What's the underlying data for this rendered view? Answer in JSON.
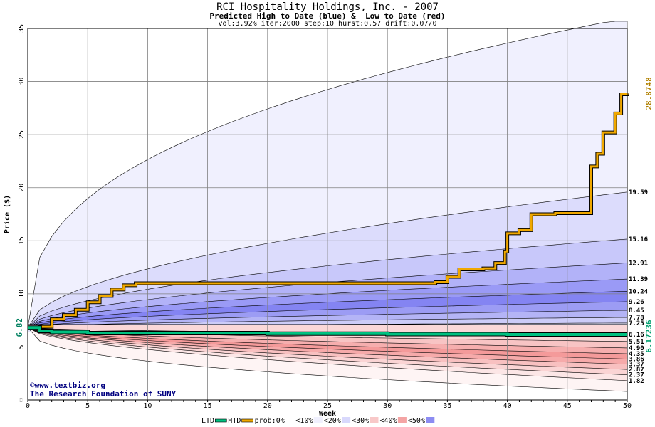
{
  "header": {
    "title": "RCI Hospitality Holdings, Inc. - 2007",
    "subtitle": "Predicted High to Date (blue) &  Low to Date (red)",
    "params": "vol:3.92% iter:2000 step:10 hurst:0.57 drift:0.07/0"
  },
  "credits": {
    "line1": "©www.textbiz.org",
    "line2": "The Research Foundation of SUNY"
  },
  "chart_data": {
    "type": "area",
    "xlabel": "Week",
    "ylabel": "Price ($)",
    "xlim": [
      0,
      50
    ],
    "ylim": [
      0,
      35
    ],
    "x_ticks": [
      0,
      5,
      10,
      15,
      20,
      25,
      30,
      35,
      40,
      45,
      50
    ],
    "y_ticks": [
      0,
      5,
      10,
      15,
      20,
      25,
      30,
      35
    ],
    "grid": true,
    "start_price_label": "6.82",
    "ltd_end_label": "6.17236",
    "htd_end_label": "28.8748",
    "right_labels": [
      "19.59",
      "15.16",
      "12.91",
      "11.39",
      "10.24",
      "9.26",
      "8.45",
      "7.78",
      "7.25",
      "6.16",
      "5.51",
      "4.90",
      "4.35",
      "3.86",
      "3.37",
      "2.87",
      "2.37",
      "1.82"
    ],
    "high_bands": [
      {
        "band": "max",
        "end": 36.0,
        "fill": "#f0f0fe"
      },
      {
        "band": "<10%",
        "end": 19.59,
        "fill": "#dcdcfc"
      },
      {
        "band": "10%",
        "end": 15.16,
        "fill": "#c8c8fa"
      },
      {
        "band": "20%",
        "end": 12.91,
        "fill": "#b2b2f8"
      },
      {
        "band": "30%",
        "end": 11.39,
        "fill": "#9a9af6"
      },
      {
        "band": "40%",
        "end": 10.24,
        "fill": "#8484f2"
      },
      {
        "band": "50%",
        "end": 9.26,
        "fill": "#9c9cf4"
      },
      {
        "band": "60%",
        "end": 8.45,
        "fill": "#b4b4f6"
      },
      {
        "band": "70%",
        "end": 7.78,
        "fill": "#ccccf8"
      },
      {
        "band": "80%",
        "end": 7.25,
        "fill": "#e2e2fb"
      }
    ],
    "low_bands": [
      {
        "band": "80%",
        "end": 5.51,
        "fill": "#fad8d8"
      },
      {
        "band": "70%",
        "end": 4.9,
        "fill": "#f8c4c4"
      },
      {
        "band": "60%",
        "end": 4.35,
        "fill": "#f6aeae"
      },
      {
        "band": "50%",
        "end": 3.86,
        "fill": "#f49a9a"
      },
      {
        "band": "40%",
        "end": 3.37,
        "fill": "#f6aaaa"
      },
      {
        "band": "30%",
        "end": 2.87,
        "fill": "#f8c0c0"
      },
      {
        "band": "20%",
        "end": 2.37,
        "fill": "#fad4d4"
      },
      {
        "band": "10%",
        "end": 1.82,
        "fill": "#fce6e6"
      },
      {
        "band": "min",
        "end": 0.8,
        "fill": "#fef4f4"
      }
    ],
    "series": [
      {
        "name": "HTD",
        "color": "#f0a800",
        "points": [
          [
            0,
            6.82
          ],
          [
            1,
            6.9
          ],
          [
            2,
            7.6
          ],
          [
            3,
            8.0
          ],
          [
            4,
            8.5
          ],
          [
            5,
            9.2
          ],
          [
            6,
            9.8
          ],
          [
            7,
            10.4
          ],
          [
            8,
            10.8
          ],
          [
            9,
            11.0
          ],
          [
            20,
            11.0
          ],
          [
            30,
            11.0
          ],
          [
            34,
            11.1
          ],
          [
            35,
            11.6
          ],
          [
            36,
            12.3
          ],
          [
            38,
            12.4
          ],
          [
            39,
            12.9
          ],
          [
            39.8,
            14.0
          ],
          [
            40,
            15.7
          ],
          [
            41,
            16.0
          ],
          [
            42,
            17.5
          ],
          [
            44,
            17.6
          ],
          [
            46,
            17.6
          ],
          [
            47,
            22.0
          ],
          [
            47.5,
            23.2
          ],
          [
            48,
            25.2
          ],
          [
            49,
            27.0
          ],
          [
            49.5,
            28.8
          ],
          [
            50,
            28.87
          ]
        ]
      },
      {
        "name": "LTD",
        "color": "#00c080",
        "points": [
          [
            0,
            6.82
          ],
          [
            1,
            6.5
          ],
          [
            2,
            6.4
          ],
          [
            5,
            6.3
          ],
          [
            10,
            6.3
          ],
          [
            20,
            6.25
          ],
          [
            30,
            6.2
          ],
          [
            40,
            6.17
          ],
          [
            50,
            6.17
          ]
        ]
      }
    ]
  },
  "legend": {
    "items": [
      {
        "label": "LTD",
        "kind": "line",
        "color": "#00c080"
      },
      {
        "label": "HTD",
        "kind": "line",
        "color": "#f0a800"
      },
      {
        "label": "prob:0%",
        "kind": "swatch",
        "color": "#ffffff"
      },
      {
        "label": "<10%",
        "kind": "swatch",
        "color": "#f0f0fe"
      },
      {
        "label": "<20%",
        "kind": "swatch",
        "color": "#d8d8fc"
      },
      {
        "label": "<30%",
        "kind": "swatch",
        "color": "#f8c8c8"
      },
      {
        "label": "<40%",
        "kind": "swatch",
        "color": "#f4a4a4"
      },
      {
        "label": "<50%",
        "kind": "swatch",
        "color": "#8c8cf2"
      }
    ]
  }
}
